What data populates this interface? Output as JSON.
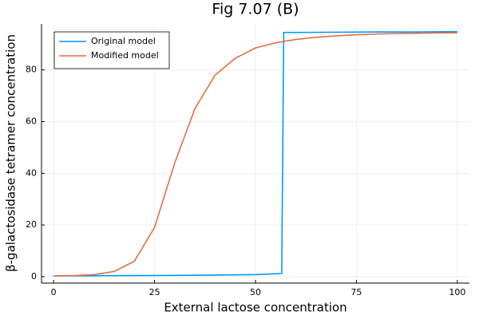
{
  "chart_data": {
    "type": "line",
    "title": "Fig 7.07 (B)",
    "xlabel": "External lactose concentration",
    "ylabel": "β-galactosidase tetramer concentration",
    "xlim": [
      -3,
      103
    ],
    "ylim": [
      -2.5,
      97.8
    ],
    "xticks": [
      0,
      25,
      50,
      75,
      100
    ],
    "yticks": [
      0,
      20,
      40,
      60,
      80
    ],
    "grid": true,
    "legend": "top-left",
    "series": [
      {
        "name": "Original model",
        "color": "#009afa",
        "x": [
          0,
          10,
          20,
          30,
          40,
          50,
          56.5,
          57,
          60,
          70,
          80,
          90,
          100
        ],
        "values": [
          0.3,
          0.35,
          0.4,
          0.5,
          0.6,
          0.8,
          1.2,
          94.5,
          94.5,
          94.6,
          94.7,
          94.7,
          94.8
        ]
      },
      {
        "name": "Modified model",
        "color": "#e26f46",
        "x": [
          0,
          5,
          10,
          15,
          20,
          25,
          30,
          35,
          40,
          45,
          50,
          55,
          60,
          65,
          70,
          75,
          80,
          85,
          90,
          95,
          100
        ],
        "values": [
          0.3,
          0.4,
          0.8,
          2,
          6,
          19,
          44,
          65,
          78,
          84.5,
          88.5,
          90.5,
          91.8,
          92.6,
          93.2,
          93.6,
          93.9,
          94.1,
          94.2,
          94.3,
          94.4
        ]
      }
    ]
  }
}
